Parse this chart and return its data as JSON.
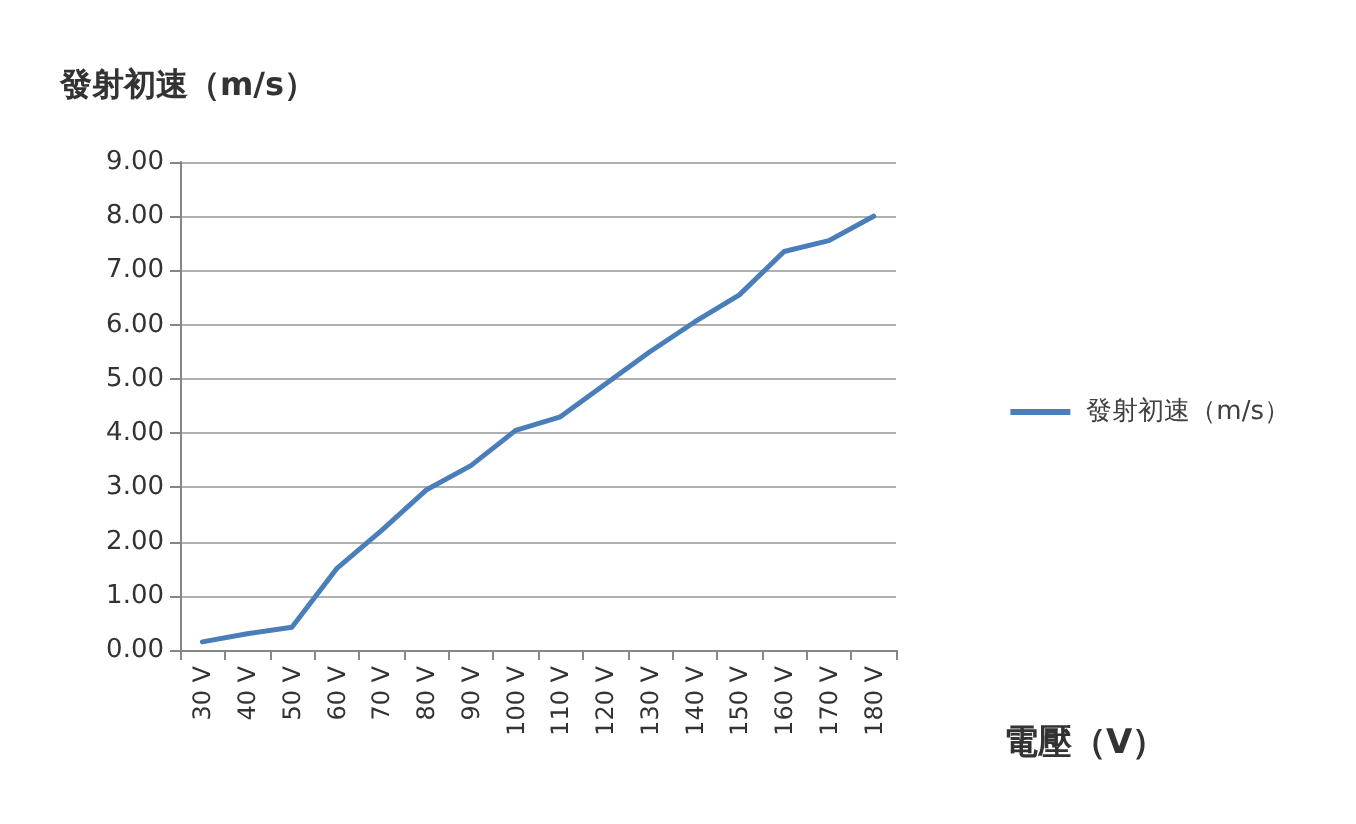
{
  "chart_data": {
    "type": "line",
    "ylabel": "發射初速（m/s）",
    "xlabel": "電壓（V）",
    "categories": [
      "30 V",
      "40 V",
      "50 V",
      "60 V",
      "70 V",
      "80 V",
      "90 V",
      "100 V",
      "110 V",
      "120 V",
      "130 V",
      "140 V",
      "150 V",
      "160 V",
      "170 V",
      "180 V"
    ],
    "series": [
      {
        "name": "發射初速（m/s）",
        "color": "#4a7ebb",
        "values": [
          0.15,
          0.3,
          0.42,
          1.5,
          2.2,
          2.95,
          3.4,
          4.05,
          4.3,
          4.9,
          5.5,
          6.05,
          6.55,
          7.35,
          7.55,
          8.0
        ]
      }
    ],
    "ylim": [
      0,
      9
    ],
    "yticks": [
      {
        "value": 0,
        "label": "0.00"
      },
      {
        "value": 1,
        "label": "1.00"
      },
      {
        "value": 2,
        "label": "2.00"
      },
      {
        "value": 3,
        "label": "3.00"
      },
      {
        "value": 4,
        "label": "4.00"
      },
      {
        "value": 5,
        "label": "5.00"
      },
      {
        "value": 6,
        "label": "6.00"
      },
      {
        "value": 7,
        "label": "7.00"
      },
      {
        "value": 8,
        "label": "8.00"
      },
      {
        "value": 9,
        "label": "9.00"
      }
    ],
    "grid": "y",
    "legend": "right",
    "marker": "none",
    "line_style": "solid"
  }
}
